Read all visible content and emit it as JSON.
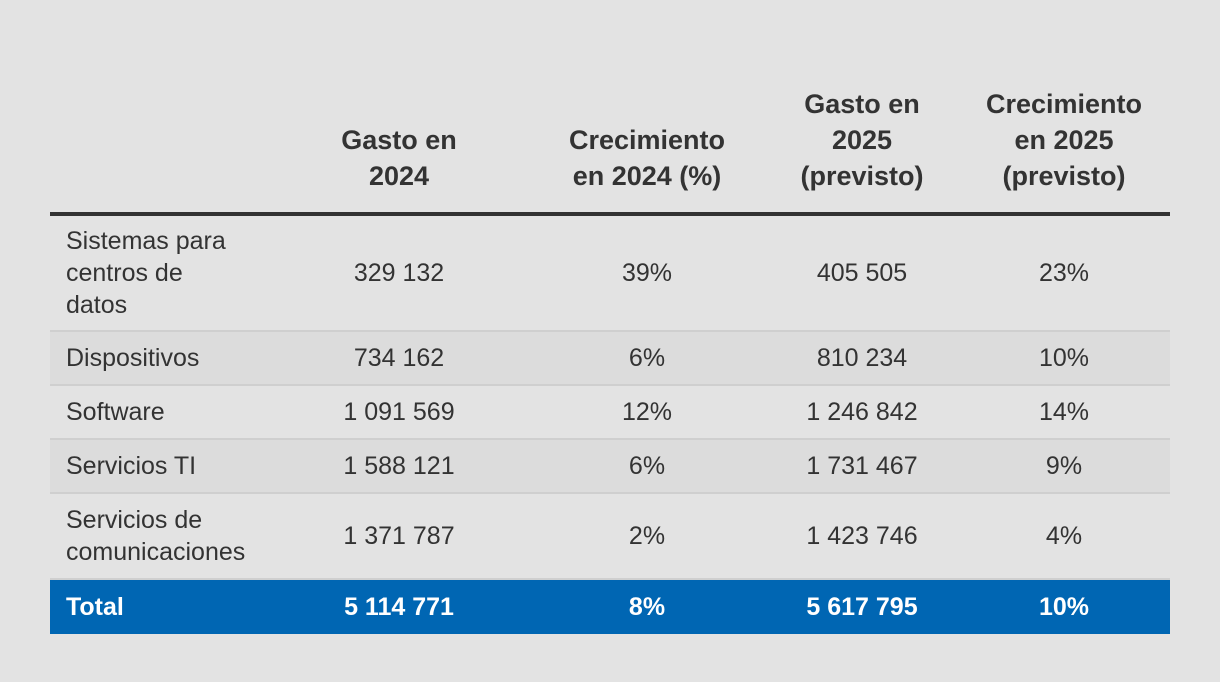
{
  "chart_data": {
    "type": "table",
    "columns": [
      "",
      "Gasto en 2024",
      "Crecimiento en 2024 (%)",
      "Gasto en 2025 (previsto)",
      "Crecimiento en 2025 (previsto)"
    ],
    "header_lines": [
      [],
      [
        "Gasto en",
        "2024"
      ],
      [
        "Crecimiento",
        "en 2024 (%)"
      ],
      [
        "Gasto en",
        "2025",
        "(previsto)"
      ],
      [
        "Crecimiento",
        "en 2025",
        "(previsto)"
      ]
    ],
    "rows": [
      {
        "label": "Sistemas para centros de datos",
        "label_lines": [
          "Sistemas para",
          "centros de",
          "datos"
        ],
        "gasto_2024": "329 132",
        "crec_2024": "39%",
        "gasto_2025": "405 505",
        "crec_2025": "23%"
      },
      {
        "label": "Dispositivos",
        "label_lines": [
          "Dispositivos"
        ],
        "gasto_2024": "734 162",
        "crec_2024": "6%",
        "gasto_2025": "810 234",
        "crec_2025": "10%"
      },
      {
        "label": "Software",
        "label_lines": [
          "Software"
        ],
        "gasto_2024": "1 091 569",
        "crec_2024": "12%",
        "gasto_2025": "1 246 842",
        "crec_2025": "14%"
      },
      {
        "label": "Servicios TI",
        "label_lines": [
          "Servicios TI"
        ],
        "gasto_2024": "1 588 121",
        "crec_2024": "6%",
        "gasto_2025": "1 731 467",
        "crec_2025": "9%"
      },
      {
        "label": "Servicios de comunicaciones",
        "label_lines": [
          "Servicios de",
          "comunicaciones"
        ],
        "gasto_2024": "1 371 787",
        "crec_2024": "2%",
        "gasto_2025": "1 423 746",
        "crec_2025": "4%"
      }
    ],
    "total": {
      "label": "Total",
      "gasto_2024": "5 114 771",
      "crec_2024": "8%",
      "gasto_2025": "5 617 795",
      "crec_2025": "10%"
    }
  },
  "colors": {
    "background": "#e3e3e3",
    "text": "#333333",
    "header_rule": "#333333",
    "row_shade": "#dcdcdc",
    "row_border": "#cfcfcf",
    "total_background": "#0066b3",
    "total_text": "#ffffff"
  }
}
